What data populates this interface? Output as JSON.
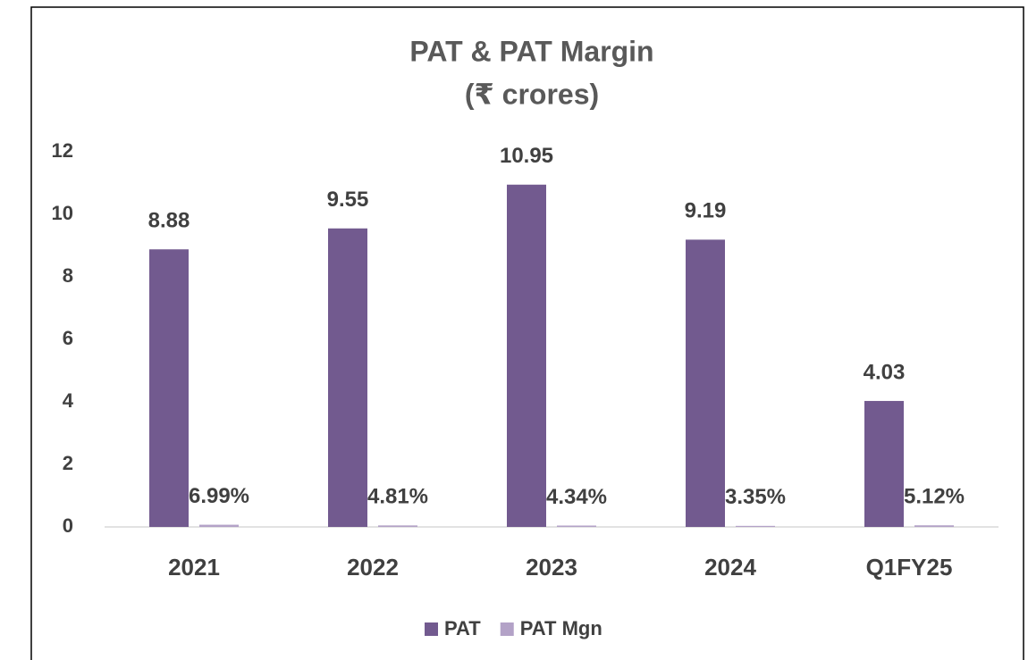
{
  "chart_data": {
    "type": "bar",
    "title": "PAT & PAT Margin",
    "subtitle": "(₹ crores)",
    "categories": [
      "2021",
      "2022",
      "2023",
      "2024",
      "Q1FY25"
    ],
    "series": [
      {
        "name": "PAT",
        "color": "#725a8f",
        "values": [
          8.88,
          9.55,
          10.95,
          9.19,
          4.03
        ]
      },
      {
        "name": "PAT Mgn",
        "color": "#b3a2c7",
        "values": [
          0.0699,
          0.0481,
          0.0434,
          0.0335,
          0.0512
        ],
        "value_labels": [
          "6.99%",
          "4.81%",
          "4.34%",
          "3.35%",
          "5.12%"
        ]
      }
    ],
    "ylim": [
      0,
      12
    ],
    "yticks": [
      0,
      2,
      4,
      6,
      8,
      10,
      12
    ],
    "grid": false,
    "legend": "bottom"
  }
}
